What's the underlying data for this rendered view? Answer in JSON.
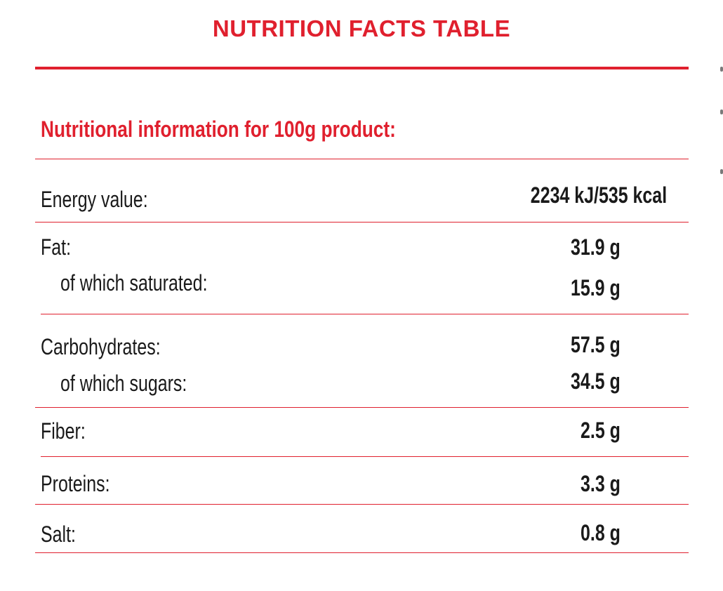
{
  "title": "NUTRITION FACTS TABLE",
  "heading": "Nutritional information for 100g product:",
  "rows": [
    {
      "label": "Energy value:",
      "value": "2234 kJ/535 kcal"
    },
    {
      "label": "Fat:",
      "value": "31.9 g"
    },
    {
      "label": "of which saturated:",
      "value": "15.9 g"
    },
    {
      "label": "Carbohydrates:",
      "value": "57.5 g"
    },
    {
      "label": "of which sugars:",
      "value": "34.5 g"
    },
    {
      "label": "Fiber:",
      "value": "2.5 g"
    },
    {
      "label": "Proteins:",
      "value": "3.3 g"
    },
    {
      "label": "Salt:",
      "value": "0.8 g"
    }
  ],
  "colors": {
    "accent": "#e0202e",
    "text": "#1a1a1a"
  }
}
